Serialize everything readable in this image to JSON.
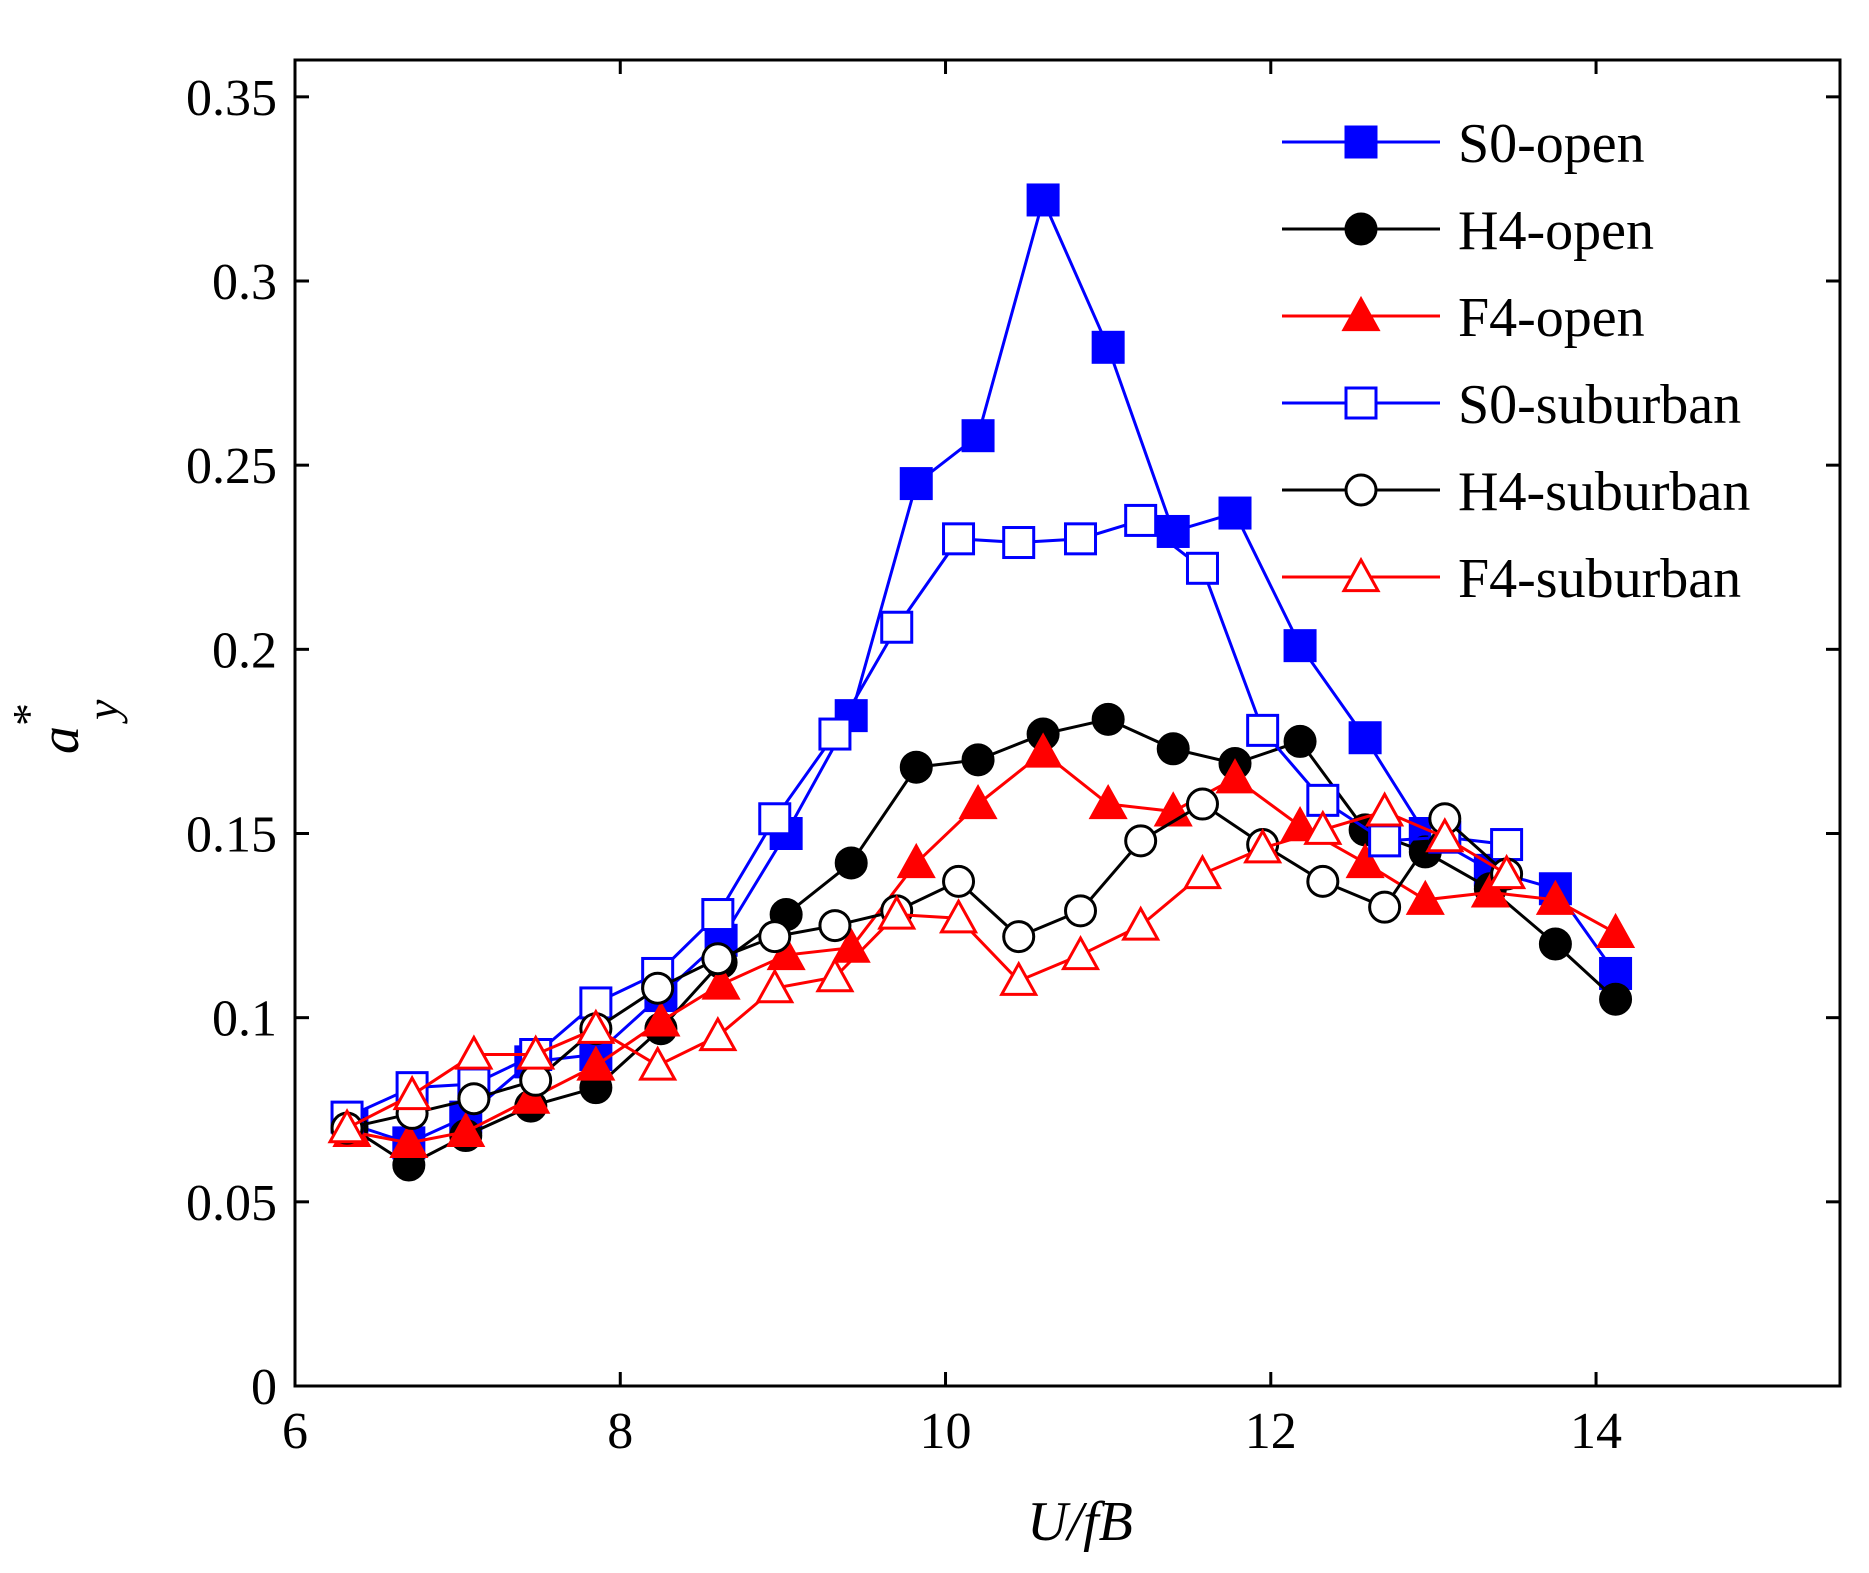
{
  "chart_data": {
    "type": "line",
    "title": "",
    "xlabel": "U/fB",
    "ylabel": "a",
    "ylabel_sub": "y",
    "ylabel_sup": "*",
    "xlim": [
      6,
      15.5
    ],
    "ylim": [
      0,
      0.36
    ],
    "xticks": [
      6,
      8,
      10,
      12,
      14
    ],
    "xtick_labels": [
      "6",
      "8",
      "10",
      "12",
      "14"
    ],
    "yticks": [
      0,
      0.05,
      0.1,
      0.15,
      0.2,
      0.25,
      0.3,
      0.35
    ],
    "ytick_labels": [
      "0",
      "0.05",
      "0.1",
      "0.15",
      "0.2",
      "0.25",
      "0.3",
      "0.35"
    ],
    "grid": false,
    "legend_position": "top-right",
    "series": [
      {
        "name": "S0-open",
        "color": "#0000ff",
        "marker": "square",
        "filled": true,
        "x": [
          6.35,
          6.7,
          7.05,
          7.45,
          7.85,
          8.25,
          8.62,
          9.02,
          9.42,
          9.82,
          10.2,
          10.6,
          11.0,
          11.4,
          11.78,
          12.18,
          12.58,
          12.95,
          13.35,
          13.75,
          14.12
        ],
        "y": [
          0.071,
          0.066,
          0.073,
          0.088,
          0.09,
          0.106,
          0.121,
          0.15,
          0.182,
          0.245,
          0.258,
          0.322,
          0.282,
          0.232,
          0.237,
          0.201,
          0.176,
          0.15,
          0.14,
          0.135,
          0.112
        ]
      },
      {
        "name": "H4-open",
        "color": "#000000",
        "marker": "circle",
        "filled": true,
        "x": [
          6.35,
          6.7,
          7.05,
          7.45,
          7.85,
          8.25,
          8.62,
          9.02,
          9.42,
          9.82,
          10.2,
          10.6,
          11.0,
          11.4,
          11.78,
          12.18,
          12.58,
          12.95,
          13.35,
          13.75,
          14.12
        ],
        "y": [
          0.07,
          0.06,
          0.068,
          0.076,
          0.081,
          0.097,
          0.115,
          0.128,
          0.142,
          0.168,
          0.17,
          0.177,
          0.181,
          0.173,
          0.169,
          0.175,
          0.151,
          0.145,
          0.135,
          0.12,
          0.105
        ]
      },
      {
        "name": "F4-open",
        "color": "#ff0000",
        "marker": "triangle",
        "filled": true,
        "x": [
          6.35,
          6.7,
          7.05,
          7.45,
          7.85,
          8.25,
          8.62,
          9.02,
          9.42,
          9.82,
          10.2,
          10.6,
          11.0,
          11.4,
          11.78,
          12.18,
          12.58,
          12.95,
          13.35,
          13.75,
          14.12
        ],
        "y": [
          0.069,
          0.066,
          0.069,
          0.078,
          0.087,
          0.099,
          0.109,
          0.117,
          0.119,
          0.142,
          0.158,
          0.172,
          0.158,
          0.156,
          0.165,
          0.152,
          0.142,
          0.132,
          0.134,
          0.132,
          0.123
        ]
      },
      {
        "name": "S0-suburban",
        "color": "#0000ff",
        "marker": "square",
        "filled": false,
        "x": [
          6.32,
          6.72,
          7.1,
          7.48,
          7.85,
          8.23,
          8.6,
          8.95,
          9.32,
          9.7,
          10.08,
          10.45,
          10.83,
          11.2,
          11.58,
          11.95,
          12.32,
          12.7,
          13.07,
          13.45
        ],
        "y": [
          0.073,
          0.081,
          0.082,
          0.09,
          0.104,
          0.112,
          0.128,
          0.154,
          0.177,
          0.206,
          0.23,
          0.229,
          0.23,
          0.235,
          0.222,
          0.178,
          0.159,
          0.148,
          0.149,
          0.147
        ]
      },
      {
        "name": "H4-suburban",
        "color": "#000000",
        "marker": "circle",
        "filled": false,
        "x": [
          6.32,
          6.72,
          7.1,
          7.48,
          7.85,
          8.23,
          8.6,
          8.95,
          9.32,
          9.7,
          10.08,
          10.45,
          10.83,
          11.2,
          11.58,
          11.95,
          12.32,
          12.7,
          13.07,
          13.45
        ],
        "y": [
          0.07,
          0.074,
          0.078,
          0.083,
          0.097,
          0.108,
          0.116,
          0.122,
          0.125,
          0.129,
          0.137,
          0.122,
          0.129,
          0.148,
          0.158,
          0.147,
          0.137,
          0.13,
          0.154,
          0.139
        ]
      },
      {
        "name": "F4-suburban",
        "color": "#ff0000",
        "marker": "triangle",
        "filled": false,
        "x": [
          6.32,
          6.72,
          7.1,
          7.48,
          7.85,
          8.23,
          8.6,
          8.95,
          9.32,
          9.7,
          10.08,
          10.45,
          10.83,
          11.2,
          11.58,
          11.95,
          12.32,
          12.7,
          13.07,
          13.45
        ],
        "y": [
          0.07,
          0.079,
          0.09,
          0.09,
          0.097,
          0.087,
          0.095,
          0.108,
          0.111,
          0.128,
          0.127,
          0.11,
          0.117,
          0.125,
          0.139,
          0.146,
          0.151,
          0.156,
          0.149,
          0.139
        ]
      }
    ]
  }
}
